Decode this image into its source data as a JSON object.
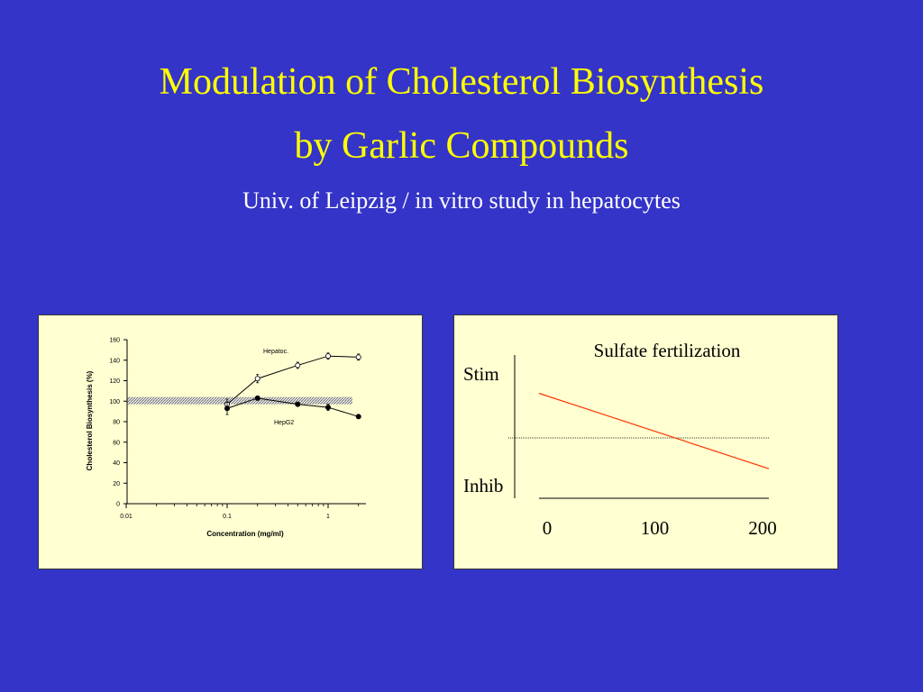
{
  "slide": {
    "title_line_1": "Modulation of Cholesterol Biosynthesis",
    "title_line_2": "by Garlic Compounds",
    "subtitle": "Univ. of Leipzig / in vitro study in  hepatocytes"
  },
  "colors": {
    "background": "#3434c8",
    "title": "#ffff00",
    "subtitle": "#ffffff",
    "panel_fill": "#ffffd2",
    "trend_line": "#ff3300"
  },
  "chart_data": [
    {
      "type": "line",
      "xlabel": "Concentration (mg/ml)",
      "ylabel": "Cholesterol Biosynthesis (%)",
      "x_scale": "log",
      "xlim": [
        0.01,
        2
      ],
      "ylim": [
        0,
        160
      ],
      "y_ticks": [
        0,
        20,
        40,
        60,
        80,
        100,
        120,
        140,
        160
      ],
      "x_ticks": [
        {
          "value": 0.01,
          "label": "0.01"
        },
        {
          "value": 0.1,
          "label": "0.1"
        },
        {
          "value": 1,
          "label": "1"
        }
      ],
      "reference_band": [
        97,
        104
      ],
      "series": [
        {
          "name": "Hepatoc.",
          "marker": "open-circle",
          "x": [
            0.1,
            0.2,
            0.5,
            1.0,
            2.0
          ],
          "y": [
            97,
            122,
            135,
            144,
            143
          ],
          "err": [
            5,
            4,
            3,
            3,
            3
          ]
        },
        {
          "name": "HepG2",
          "marker": "filled-circle",
          "x": [
            0.1,
            0.2,
            0.5,
            1.0,
            2.0
          ],
          "y": [
            93,
            103,
            97,
            94,
            85
          ],
          "err": [
            6,
            2,
            2,
            3,
            2
          ]
        }
      ]
    },
    {
      "type": "line",
      "title": "Sulfate fertilization",
      "y_labels": {
        "top": "Stim",
        "bottom": "Inhib"
      },
      "x_ticks": [
        {
          "value": 0,
          "label": "0"
        },
        {
          "value": 100,
          "label": "100"
        },
        {
          "value": 200,
          "label": "200"
        }
      ],
      "xlim": [
        0,
        200
      ],
      "ylim": [
        -1,
        1
      ],
      "baseline": 0,
      "series": [
        {
          "x": [
            0,
            200
          ],
          "y": [
            0.55,
            -0.38
          ]
        }
      ]
    }
  ]
}
